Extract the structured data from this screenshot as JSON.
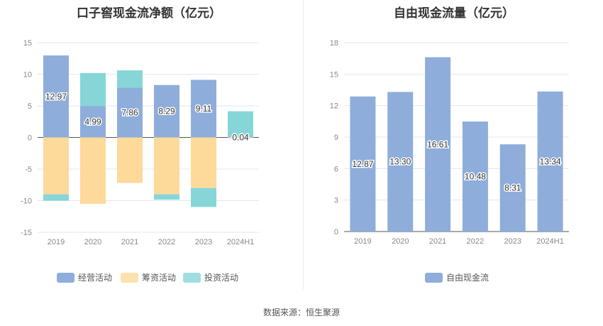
{
  "source": "数据来源：恒生聚源",
  "colors": {
    "operating": "#8eaddb",
    "financing": "#fdd99a",
    "investing": "#86d6d8",
    "fcf": "#8eaddb"
  },
  "chart_data": [
    {
      "type": "bar",
      "stacked": true,
      "title": "口子窖现金流净额（亿元）",
      "categories": [
        "2019",
        "2020",
        "2021",
        "2022",
        "2023",
        "2024H1"
      ],
      "ylim": [
        -15,
        15
      ],
      "yticks": [
        15,
        10,
        5,
        0,
        -5,
        -10,
        -15
      ],
      "grid": true,
      "legend": "bottom",
      "series": [
        {
          "name": "经营活动",
          "values": [
            12.97,
            4.99,
            7.86,
            8.29,
            9.11,
            0.04
          ],
          "labels": [
            "12.97",
            "4.99",
            "7.86",
            "8.29",
            "9.11",
            "0.04"
          ]
        },
        {
          "name": "筹资活动",
          "values": [
            -9.0,
            -10.5,
            -7.2,
            -9.0,
            -8.0,
            -0.1
          ]
        },
        {
          "name": "投资活动",
          "values": [
            -1.0,
            5.2,
            2.75,
            -0.85,
            -3.0,
            4.1
          ]
        }
      ]
    },
    {
      "type": "bar",
      "title": "自由现金流量（亿元）",
      "categories": [
        "2019",
        "2020",
        "2021",
        "2022",
        "2023",
        "2024H1"
      ],
      "ylim": [
        0,
        18
      ],
      "yticks": [
        18,
        15,
        12,
        9,
        6,
        3,
        0
      ],
      "grid": true,
      "legend": "bottom",
      "series": [
        {
          "name": "自由现金流",
          "values": [
            12.87,
            13.3,
            16.61,
            10.48,
            8.31,
            13.34
          ],
          "labels": [
            "12.87",
            "13.30",
            "16.61",
            "10.48",
            "8.31",
            "13.34"
          ]
        }
      ]
    }
  ]
}
